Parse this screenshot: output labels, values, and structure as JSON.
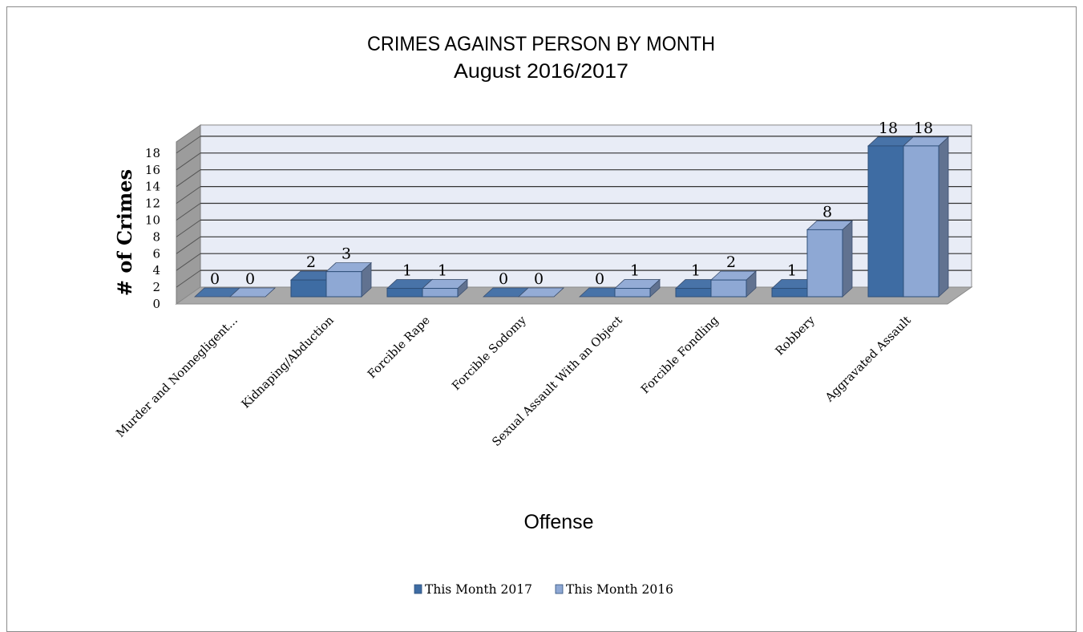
{
  "chart_data": {
    "type": "bar",
    "title": "CRIMES AGAINST PERSON BY MONTH",
    "subtitle": "August 2016/2017",
    "xlabel": "Offense",
    "ylabel": "# of Crimes",
    "ylim": [
      0,
      18
    ],
    "yticks": [
      "0",
      "2",
      "4",
      "6",
      "8",
      "10",
      "12",
      "14",
      "16",
      "18"
    ],
    "categories": [
      "Murder and Nonnegligent...",
      "Kidnaping/Abduction",
      "Forcible Rape",
      "Forcible Sodomy",
      "Sexual Assault With an Object",
      "Forcible Fondling",
      "Robbery",
      "Aggravated Assault"
    ],
    "series": [
      {
        "name": "This Month 2017",
        "values": [
          0,
          2,
          1,
          0,
          0,
          1,
          1,
          18
        ]
      },
      {
        "name": "This Month 2016",
        "values": [
          0,
          3,
          1,
          0,
          1,
          2,
          8,
          18
        ]
      }
    ],
    "colors": {
      "series_0": "#3e6ca3",
      "series_1": "#8ea8d4",
      "plot_back": "#e8ecf6",
      "wall_side": "#9c9c9c",
      "floor": "#a9a9a9",
      "grid": "#333333"
    },
    "grid": true,
    "legend": "bottom",
    "style": "3d-clustered-column"
  }
}
